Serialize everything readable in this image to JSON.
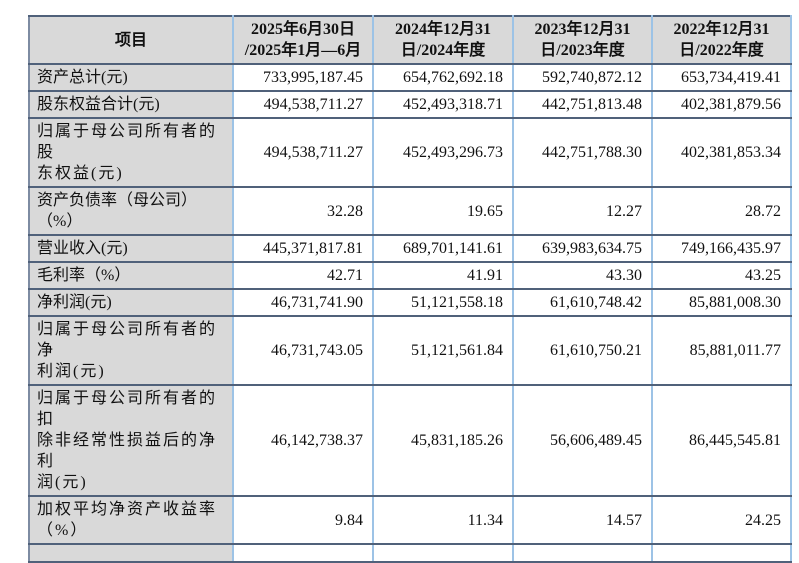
{
  "colors": {
    "header_bg": "#d9d9d9",
    "grid_horizontal": "#50617a",
    "grid_vertical": "#9dc3e6",
    "grid_outer_left": "#7d8ba2",
    "text": "#111111",
    "page_bg": "#ffffff"
  },
  "table": {
    "header": {
      "item_label": "项目",
      "periods": [
        [
          "2025年6月30日",
          "/2025年1月—6月"
        ],
        [
          "2024年12月31",
          "日/2024年度"
        ],
        [
          "2023年12月31",
          "日/2023年度"
        ],
        [
          "2022年12月31",
          "日/2022年度"
        ]
      ]
    },
    "rows": [
      {
        "label": [
          "资产总计(元)"
        ],
        "values": [
          "733,995,187.45",
          "654,762,692.18",
          "592,740,872.12",
          "653,734,419.41"
        ]
      },
      {
        "label": [
          "股东权益合计(元)"
        ],
        "values": [
          "494,538,711.27",
          "452,493,318.71",
          "442,751,813.48",
          "402,381,879.56"
        ]
      },
      {
        "label": [
          "归属于母公司所有者的股",
          "东权益(元)"
        ],
        "values": [
          "494,538,711.27",
          "452,493,296.73",
          "442,751,788.30",
          "402,381,853.34"
        ]
      },
      {
        "label": [
          "资产负债率（母公司）（%）"
        ],
        "values": [
          "32.28",
          "19.65",
          "12.27",
          "28.72"
        ]
      },
      {
        "label": [
          "营业收入(元)"
        ],
        "values": [
          "445,371,817.81",
          "689,701,141.61",
          "639,983,634.75",
          "749,166,435.97"
        ]
      },
      {
        "label": [
          "毛利率（%）"
        ],
        "values": [
          "42.71",
          "41.91",
          "43.30",
          "43.25"
        ]
      },
      {
        "label": [
          "净利润(元)"
        ],
        "values": [
          "46,731,741.90",
          "51,121,558.18",
          "61,610,748.42",
          "85,881,008.30"
        ]
      },
      {
        "label": [
          "归属于母公司所有者的净",
          "利润(元)"
        ],
        "values": [
          "46,731,743.05",
          "51,121,561.84",
          "61,610,750.21",
          "85,881,011.77"
        ]
      },
      {
        "label": [
          "归属于母公司所有者的扣",
          "除非经常性损益后的净利",
          "润(元)"
        ],
        "values": [
          "46,142,738.37",
          "45,831,185.26",
          "56,606,489.45",
          "86,445,545.81"
        ]
      },
      {
        "label": [
          "加权平均净资产收益率",
          "（%）"
        ],
        "values": [
          "9.84",
          "11.34",
          "14.57",
          "24.25"
        ]
      },
      {
        "label": [
          ""
        ],
        "values": [
          "",
          "",
          "",
          ""
        ]
      }
    ]
  }
}
